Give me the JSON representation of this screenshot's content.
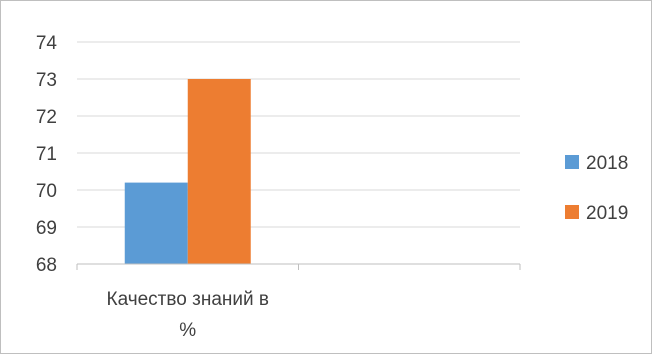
{
  "chart_data": {
    "type": "bar",
    "categories": [
      [
        "Качество знаний в",
        "%"
      ]
    ],
    "series": [
      {
        "name": "2018",
        "color": "#5b9bd5",
        "values": [
          70.2
        ]
      },
      {
        "name": "2019",
        "color": "#ed7d31",
        "values": [
          73
        ]
      }
    ],
    "ylim": [
      68,
      74
    ],
    "yticks": [
      68,
      69,
      70,
      71,
      72,
      73,
      74
    ],
    "grid": true,
    "legend": "right"
  }
}
